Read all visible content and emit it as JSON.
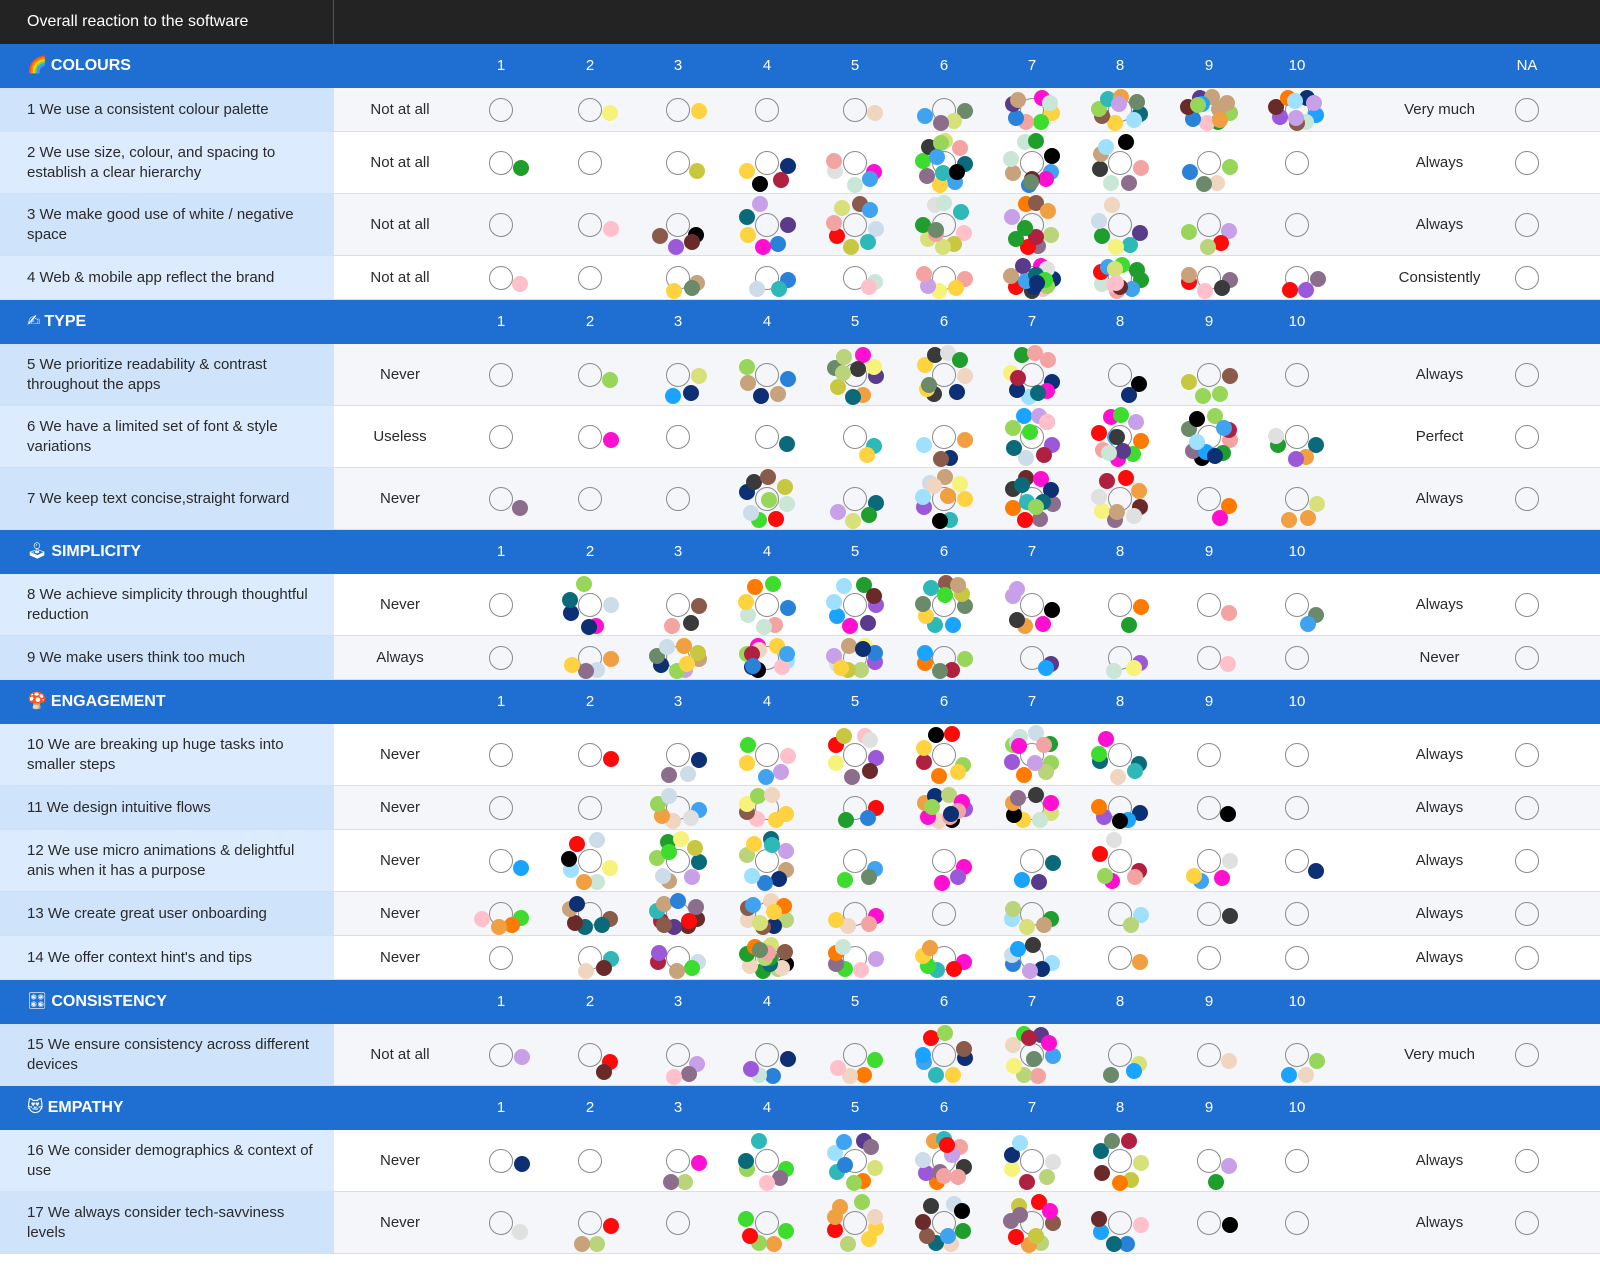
{
  "header": {
    "title": "Overall reaction to the software"
  },
  "scale_labels": [
    "1",
    "2",
    "3",
    "4",
    "5",
    "6",
    "7",
    "8",
    "9",
    "10"
  ],
  "na_label": "NA",
  "dot_palette": [
    "#0d2f73",
    "#2a82d8",
    "#3fa3f0",
    "#ff0a0a",
    "#1f9e2d",
    "#3ddc2f",
    "#ff0fd0",
    "#9b59d9",
    "#ffd23f",
    "#ff7a00",
    "#0a6a7a",
    "#8a5a4a",
    "#2fb8b8",
    "#b9d47a",
    "#d8e07a",
    "#c7a27a",
    "#ffc0cb",
    "#f4a3a3",
    "#f0d5c0",
    "#c9e6d6",
    "#f6f27a",
    "#c8a0e8",
    "#3a3a3a",
    "#000000",
    "#6b2a2a",
    "#b02040",
    "#1aa3ff",
    "#98d65a",
    "#8c6e8c",
    "#ccdce8",
    "#e0e0e0",
    "#6a8a6a",
    "#c8c840",
    "#f0a040",
    "#5a3a8a",
    "#a0e0ff"
  ],
  "sections": [
    {
      "title": "COLOURS",
      "icon": "rainbow-icon",
      "icon_glyph": "🌈",
      "questions": [
        {
          "text": "1 We use a consistent colour palette",
          "low": "Not at all",
          "high": "Very much",
          "dots": [
            0,
            1,
            1,
            0,
            1,
            4,
            8,
            9,
            12,
            10
          ]
        },
        {
          "text": "2 We use size, colour, and spacing to establish a clear hierarchy",
          "low": "Not at all",
          "high": "Always",
          "dots": [
            1,
            0,
            1,
            4,
            5,
            12,
            10,
            7,
            4,
            0
          ]
        },
        {
          "text": "3 We make good  use of white / negative space",
          "low": "Not at all",
          "high": "Always",
          "dots": [
            0,
            1,
            4,
            6,
            8,
            10,
            10,
            6,
            4,
            0
          ]
        },
        {
          "text": "4 Web & mobile app reflect the brand",
          "low": "Not at all",
          "high": "Consistently",
          "dots": [
            1,
            0,
            3,
            3,
            2,
            5,
            14,
            12,
            5,
            3
          ]
        }
      ]
    },
    {
      "title": "TYPE",
      "icon": "writing-hand-icon",
      "icon_glyph": "✍",
      "questions": [
        {
          "text": "5 We prioritize readability & contrast throughout the apps",
          "low": "Never",
          "high": "Always",
          "dots": [
            0,
            1,
            3,
            5,
            10,
            9,
            10,
            2,
            4,
            0
          ]
        },
        {
          "text": "6 We have a limited set of font & style variations",
          "low": "Useless",
          "high": "Perfect",
          "dots": [
            0,
            1,
            0,
            1,
            2,
            4,
            10,
            12,
            12,
            5
          ]
        },
        {
          "text": "7 We keep text concise,straight forward",
          "low": "Never",
          "high": "Always",
          "dots": [
            1,
            0,
            0,
            9,
            4,
            10,
            12,
            9,
            2,
            3
          ]
        }
      ]
    },
    {
      "title": "SIMPLICITY",
      "icon": "joystick-icon",
      "icon_glyph": "🕹",
      "questions": [
        {
          "text": "8 We achieve simplicity through thoughtful reduction",
          "low": "Never",
          "high": "Always",
          "dots": [
            0,
            6,
            3,
            7,
            8,
            10,
            6,
            2,
            1,
            2
          ]
        },
        {
          "text": "9  We make users think too much",
          "low": "Always",
          "high": "Never",
          "dots": [
            0,
            4,
            9,
            11,
            10,
            5,
            2,
            3,
            1,
            0
          ]
        }
      ]
    },
    {
      "title": "ENGAGEMENT",
      "icon": "mushroom-icon",
      "icon_glyph": "🍄",
      "questions": [
        {
          "text": "10 We are breaking up huge tasks into smaller steps",
          "low": "Never",
          "high": "Always",
          "dots": [
            0,
            1,
            3,
            5,
            8,
            7,
            12,
            6,
            0,
            0
          ]
        },
        {
          "text": "11 We design intuitive flows",
          "low": "Never",
          "high": "Always",
          "dots": [
            0,
            0,
            6,
            7,
            3,
            12,
            8,
            5,
            1,
            0
          ]
        },
        {
          "text": "12 We use micro animations & delightful anis when it has a purpose",
          "low": "Never",
          "high": "Always",
          "dots": [
            1,
            7,
            9,
            9,
            3,
            3,
            3,
            6,
            4,
            1
          ]
        },
        {
          "text": "13 We create great user onboarding",
          "low": "Never",
          "high": "Always",
          "dots": [
            4,
            6,
            10,
            10,
            4,
            0,
            5,
            2,
            1,
            0
          ]
        },
        {
          "text": "14 We offer context hint's and tips",
          "low": "Never",
          "high": "Always",
          "dots": [
            0,
            3,
            5,
            14,
            6,
            6,
            7,
            1,
            0,
            0
          ]
        }
      ]
    },
    {
      "title": "CONSISTENCY",
      "icon": "control-knobs-icon",
      "icon_glyph": "🎛",
      "questions": [
        {
          "text": "15 We ensure consistency across different devices",
          "low": "Not at all",
          "high": "Very much",
          "dots": [
            1,
            2,
            3,
            4,
            4,
            8,
            10,
            3,
            1,
            3
          ]
        }
      ]
    },
    {
      "title": "EMPATHY",
      "icon": "heart-eyes-icon",
      "icon_glyph": "😻",
      "questions": [
        {
          "text": "16 We consider demographics & context of use",
          "low": "Never",
          "high": "Always",
          "dots": [
            1,
            0,
            3,
            6,
            9,
            12,
            6,
            7,
            2,
            0
          ]
        },
        {
          "text": "17 We always consider tech-savviness levels",
          "low": "Never",
          "high": "Always",
          "dots": [
            1,
            3,
            0,
            5,
            8,
            9,
            10,
            5,
            1,
            0
          ]
        }
      ]
    }
  ]
}
